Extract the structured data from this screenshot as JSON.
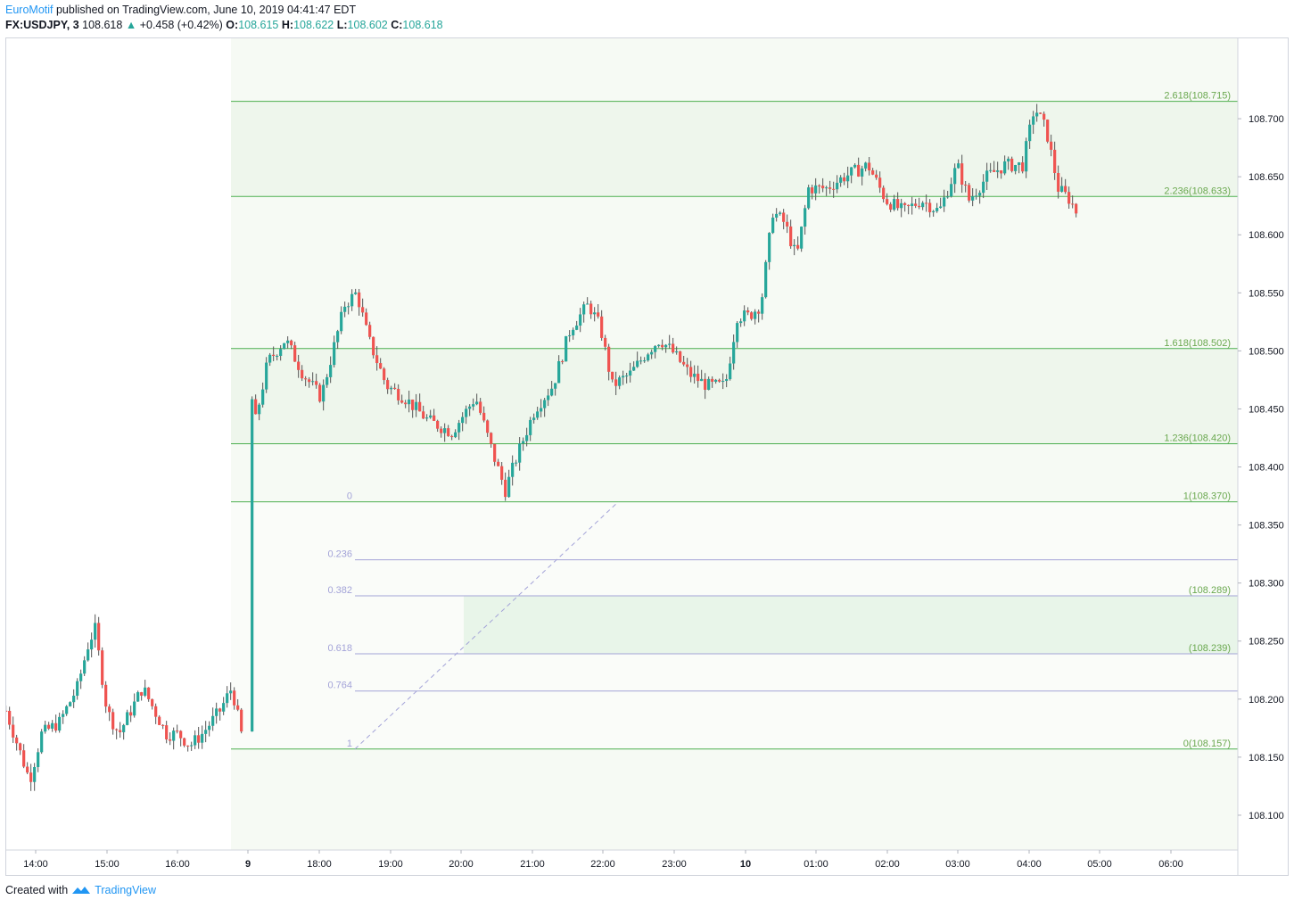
{
  "header": {
    "publisher": "EuroMotif",
    "published_text": "published on TradingView.com, June 10, 2019 04:41:47 EDT",
    "symbol": "FX:USDJPY, 3",
    "last": "108.618",
    "change": "+0.458 (+0.42%)",
    "open_label": "O:",
    "open": "108.615",
    "high_label": "H:",
    "high": "108.622",
    "low_label": "L:",
    "low": "108.602",
    "close_label": "C:",
    "close": "108.618"
  },
  "footer": {
    "created_text": "Created with",
    "brand": "TradingView"
  },
  "colors": {
    "up": "#26a69a",
    "down": "#ef5350",
    "fib_line": "#4caf50",
    "fib_label": "#6aa84f",
    "retrace_line": "#a3a3d8",
    "zone_fill": "#e8f5e9",
    "axis_text": "#131722"
  },
  "chart_data": {
    "type": "candlestick",
    "symbol": "FX:USDJPY",
    "interval": "3",
    "ylim": [
      108.07,
      108.77
    ],
    "y_ticks": [
      "108.700",
      "108.650",
      "108.600",
      "108.550",
      "108.500",
      "108.450",
      "108.400",
      "108.350",
      "108.300",
      "108.250",
      "108.200",
      "108.150",
      "108.100"
    ],
    "x_ticks": [
      "14:00",
      "15:00",
      "16:00",
      "9",
      "18:00",
      "19:00",
      "20:00",
      "21:00",
      "22:00",
      "23:00",
      "10",
      "01:00",
      "02:00",
      "03:00",
      "04:00",
      "05:00",
      "06:00"
    ],
    "fib_extension_levels": [
      {
        "label": "2.618(108.715)",
        "ratio": 2.618,
        "price": 108.715
      },
      {
        "label": "2.236(108.633)",
        "ratio": 2.236,
        "price": 108.633
      },
      {
        "label": "1.618(108.502)",
        "ratio": 1.618,
        "price": 108.502
      },
      {
        "label": "1.236(108.420)",
        "ratio": 1.236,
        "price": 108.42
      },
      {
        "label": "1(108.370)",
        "ratio": 1,
        "price": 108.37
      },
      {
        "label": "0(108.157)",
        "ratio": 0,
        "price": 108.157
      }
    ],
    "fib_retracement_levels": [
      {
        "label": "0",
        "ratio": 0,
        "price": 108.37
      },
      {
        "label": "0.236",
        "ratio": 0.236,
        "price": 108.32
      },
      {
        "label": "0.382",
        "ratio": 0.382,
        "price": 108.289
      },
      {
        "label": "0.618",
        "ratio": 0.618,
        "price": 108.239
      },
      {
        "label": "0.764",
        "ratio": 0.764,
        "price": 108.207
      },
      {
        "label": "1",
        "ratio": 1,
        "price": 108.157
      }
    ],
    "retracement_price_labels": [
      "(108.289)",
      "(108.239)"
    ],
    "price_path": [
      [
        "13:35",
        108.19
      ],
      [
        "13:45",
        108.16
      ],
      [
        "13:55",
        108.13
      ],
      [
        "14:05",
        108.17
      ],
      [
        "14:20",
        108.18
      ],
      [
        "14:35",
        108.21
      ],
      [
        "14:45",
        108.25
      ],
      [
        "14:50",
        108.26
      ],
      [
        "15:00",
        108.19
      ],
      [
        "15:10",
        108.17
      ],
      [
        "15:20",
        108.19
      ],
      [
        "15:30",
        108.21
      ],
      [
        "15:40",
        108.19
      ],
      [
        "15:50",
        108.17
      ],
      [
        "16:00",
        108.17
      ],
      [
        "16:10",
        108.16
      ],
      [
        "16:20",
        108.17
      ],
      [
        "16:35",
        108.19
      ],
      [
        "16:45",
        108.21
      ],
      [
        "16:55",
        108.16
      ],
      [
        "17:00",
        108.47
      ],
      [
        "17:05",
        108.44
      ],
      [
        "17:15",
        108.49
      ],
      [
        "17:30",
        108.51
      ],
      [
        "17:45",
        108.48
      ],
      [
        "18:00",
        108.46
      ],
      [
        "18:10",
        108.5
      ],
      [
        "18:20",
        108.54
      ],
      [
        "18:30",
        108.55
      ],
      [
        "18:40",
        108.51
      ],
      [
        "18:55",
        108.47
      ],
      [
        "19:10",
        108.46
      ],
      [
        "19:30",
        108.44
      ],
      [
        "19:50",
        108.43
      ],
      [
        "20:10",
        108.46
      ],
      [
        "20:25",
        108.41
      ],
      [
        "20:35",
        108.38
      ],
      [
        "20:45",
        108.41
      ],
      [
        "21:00",
        108.45
      ],
      [
        "21:15",
        108.47
      ],
      [
        "21:30",
        108.52
      ],
      [
        "21:45",
        108.54
      ],
      [
        "21:55",
        108.52
      ],
      [
        "22:05",
        108.47
      ],
      [
        "22:20",
        108.48
      ],
      [
        "22:35",
        108.5
      ],
      [
        "22:45",
        108.51
      ],
      [
        "22:55",
        108.5
      ],
      [
        "23:10",
        108.48
      ],
      [
        "23:25",
        108.47
      ],
      [
        "23:40",
        108.47
      ],
      [
        "23:50",
        108.53
      ],
      [
        "24:00",
        108.53
      ],
      [
        "24:10",
        108.54
      ],
      [
        "24:20",
        108.62
      ],
      [
        "24:30",
        108.61
      ],
      [
        "24:40",
        108.58
      ],
      [
        "24:50",
        108.64
      ],
      [
        "25:05",
        108.64
      ],
      [
        "25:20",
        108.65
      ],
      [
        "25:40",
        108.66
      ],
      [
        "25:55",
        108.63
      ],
      [
        "26:10",
        108.62
      ],
      [
        "26:25",
        108.63
      ],
      [
        "26:40",
        108.62
      ],
      [
        "26:55",
        108.66
      ],
      [
        "27:05",
        108.63
      ],
      [
        "27:20",
        108.65
      ],
      [
        "27:35",
        108.66
      ],
      [
        "27:50",
        108.66
      ],
      [
        "28:00",
        108.71
      ],
      [
        "28:10",
        108.69
      ],
      [
        "28:20",
        108.64
      ],
      [
        "28:30",
        108.63
      ],
      [
        "28:35",
        108.62
      ]
    ]
  }
}
